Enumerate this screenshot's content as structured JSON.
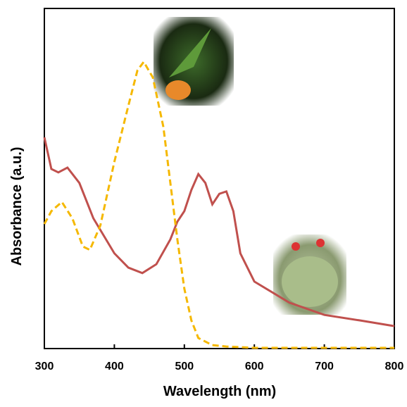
{
  "chart_data": {
    "type": "line",
    "x_label": "Wavelength (nm)",
    "y_label": "Absorbance (a.u.)",
    "xlim": [
      300,
      800
    ],
    "xticks": [
      300,
      400,
      500,
      600,
      700,
      800
    ],
    "ylim": [
      0,
      1
    ],
    "series": [
      {
        "color": "#c0504d",
        "dash": false,
        "x": [
          300,
          310,
          320,
          333,
          350,
          370,
          400,
          420,
          440,
          460,
          480,
          490,
          500,
          510,
          520,
          530,
          540,
          550,
          560,
          570,
          580,
          600,
          650,
          700,
          750,
          800
        ],
        "values": [
          0.621,
          0.528,
          0.518,
          0.532,
          0.487,
          0.383,
          0.28,
          0.238,
          0.222,
          0.248,
          0.321,
          0.373,
          0.404,
          0.466,
          0.513,
          0.487,
          0.424,
          0.455,
          0.462,
          0.404,
          0.28,
          0.197,
          0.135,
          0.099,
          0.083,
          0.066
        ]
      },
      {
        "color": "#f5b800",
        "dash": true,
        "x": [
          300,
          310,
          325,
          340,
          355,
          365,
          380,
          400,
          420,
          433,
          442,
          455,
          470,
          480,
          490,
          500,
          510,
          520,
          540,
          560,
          600,
          800
        ],
        "values": [
          0.366,
          0.404,
          0.431,
          0.383,
          0.3,
          0.29,
          0.362,
          0.549,
          0.714,
          0.818,
          0.843,
          0.797,
          0.652,
          0.487,
          0.321,
          0.176,
          0.083,
          0.031,
          0.01,
          0.006,
          0.002,
          0.002
        ]
      }
    ]
  }
}
